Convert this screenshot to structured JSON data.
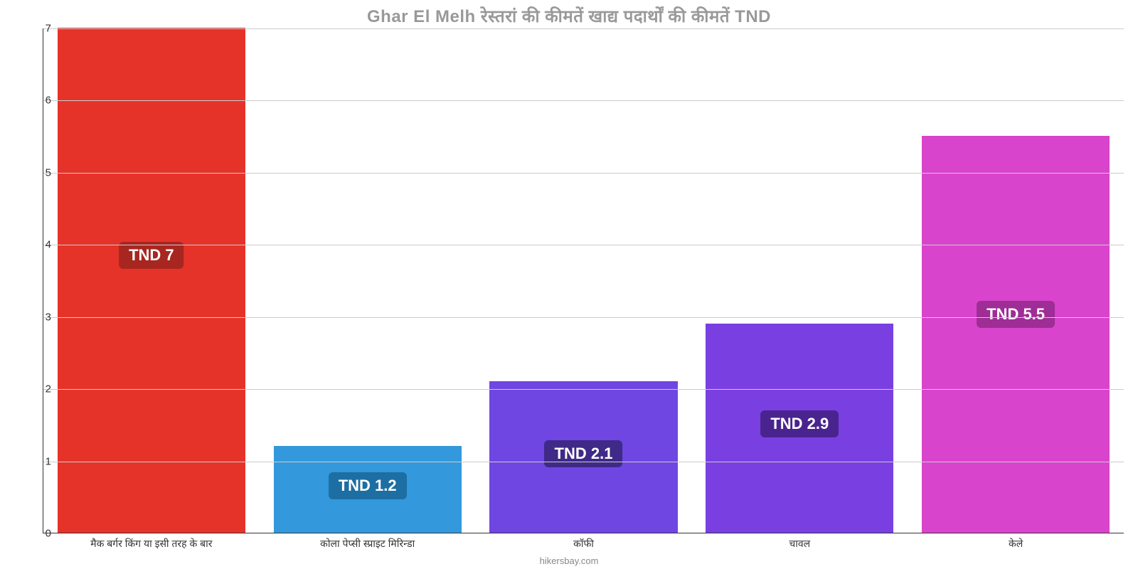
{
  "chart": {
    "type": "bar",
    "title": "Ghar El Melh रेस्तरां की कीमतें खाद्य पदार्थों की कीमतें TND",
    "title_color": "#999999",
    "title_fontsize": 24,
    "background_color": "#ffffff",
    "axis_color": "#333333",
    "grid_color": "#cccccc",
    "ylim_min": 0,
    "ylim_max": 7,
    "ytick_step": 1,
    "yticks": [
      {
        "v": 0,
        "label": "0"
      },
      {
        "v": 1,
        "label": "1"
      },
      {
        "v": 2,
        "label": "2"
      },
      {
        "v": 3,
        "label": "3"
      },
      {
        "v": 4,
        "label": "4"
      },
      {
        "v": 5,
        "label": "5"
      },
      {
        "v": 6,
        "label": "6"
      },
      {
        "v": 7,
        "label": "7"
      }
    ],
    "footer": "hikersbay.com",
    "bar_width_pct": 17.4,
    "label_fontsize": 14,
    "items": [
      {
        "category": "मैक बर्गर किंग या इसी तरह के बार",
        "value": 7,
        "value_label": "TND 7",
        "bar_color": "#e6332a",
        "badge_color": "#a72620"
      },
      {
        "category": "कोला पेप्सी स्प्राइट मिरिन्डा",
        "value": 1.2,
        "value_label": "TND 1.2",
        "bar_color": "#3398dc",
        "badge_color": "#1d6ea2"
      },
      {
        "category": "कॉफी",
        "value": 2.1,
        "value_label": "TND 2.1",
        "bar_color": "#6f46e2",
        "badge_color": "#3f2a87"
      },
      {
        "category": "चावल",
        "value": 2.9,
        "value_label": "TND 2.9",
        "bar_color": "#7a3fe1",
        "badge_color": "#49248e"
      },
      {
        "category": "केले",
        "value": 5.5,
        "value_label": "TND 5.5",
        "bar_color": "#d944cc",
        "badge_color": "#9e2d96"
      }
    ]
  }
}
